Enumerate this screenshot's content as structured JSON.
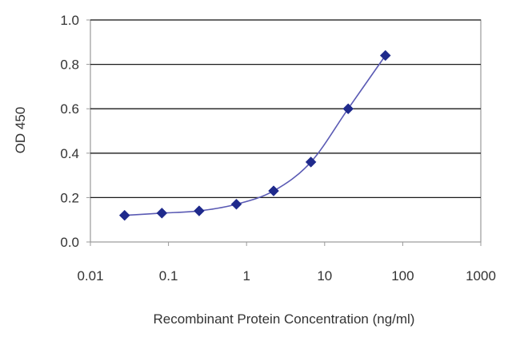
{
  "chart_data": {
    "type": "line",
    "title": "",
    "xlabel": "Recombinant Protein Concentration (ng/ml)",
    "ylabel": "OD 450",
    "x_scale": "log",
    "xlim": [
      0.01,
      1000
    ],
    "ylim": [
      0.0,
      1.0
    ],
    "x_ticks": [
      {
        "value": 0.01,
        "label": "0.01"
      },
      {
        "value": 0.1,
        "label": "0.1"
      },
      {
        "value": 1,
        "label": "1"
      },
      {
        "value": 10,
        "label": "10"
      },
      {
        "value": 100,
        "label": "100"
      },
      {
        "value": 1000,
        "label": "1000"
      }
    ],
    "y_ticks": [
      {
        "value": 0.0,
        "label": "0.0"
      },
      {
        "value": 0.2,
        "label": "0.2"
      },
      {
        "value": 0.4,
        "label": "0.4"
      },
      {
        "value": 0.6,
        "label": "0.6"
      },
      {
        "value": 0.8,
        "label": "0.8"
      },
      {
        "value": 1.0,
        "label": "1.0"
      }
    ],
    "grid": "horizontal",
    "legend": "none",
    "series": [
      {
        "x": [
          0.0274,
          0.0823,
          0.247,
          0.741,
          2.22,
          6.67,
          20,
          60
        ],
        "y": [
          0.12,
          0.13,
          0.14,
          0.17,
          0.23,
          0.36,
          0.6,
          0.84
        ]
      }
    ],
    "colors": {
      "line": "#5a5ab4",
      "marker": "#1f2a8c",
      "grid": "#1a1a1a",
      "frame": "#999999"
    }
  }
}
